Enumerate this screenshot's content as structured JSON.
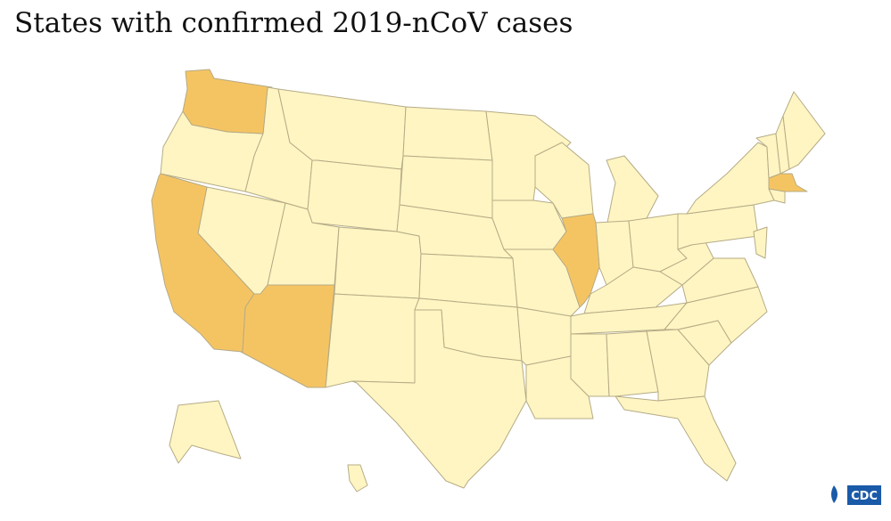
{
  "header": {
    "title": "States with confirmed 2019-nCoV cases"
  },
  "map": {
    "base_color": "#fff5c2",
    "highlight_color": "#f5c462",
    "border_color": "#b5ab86"
  },
  "logo": {
    "text": "CDC"
  }
}
